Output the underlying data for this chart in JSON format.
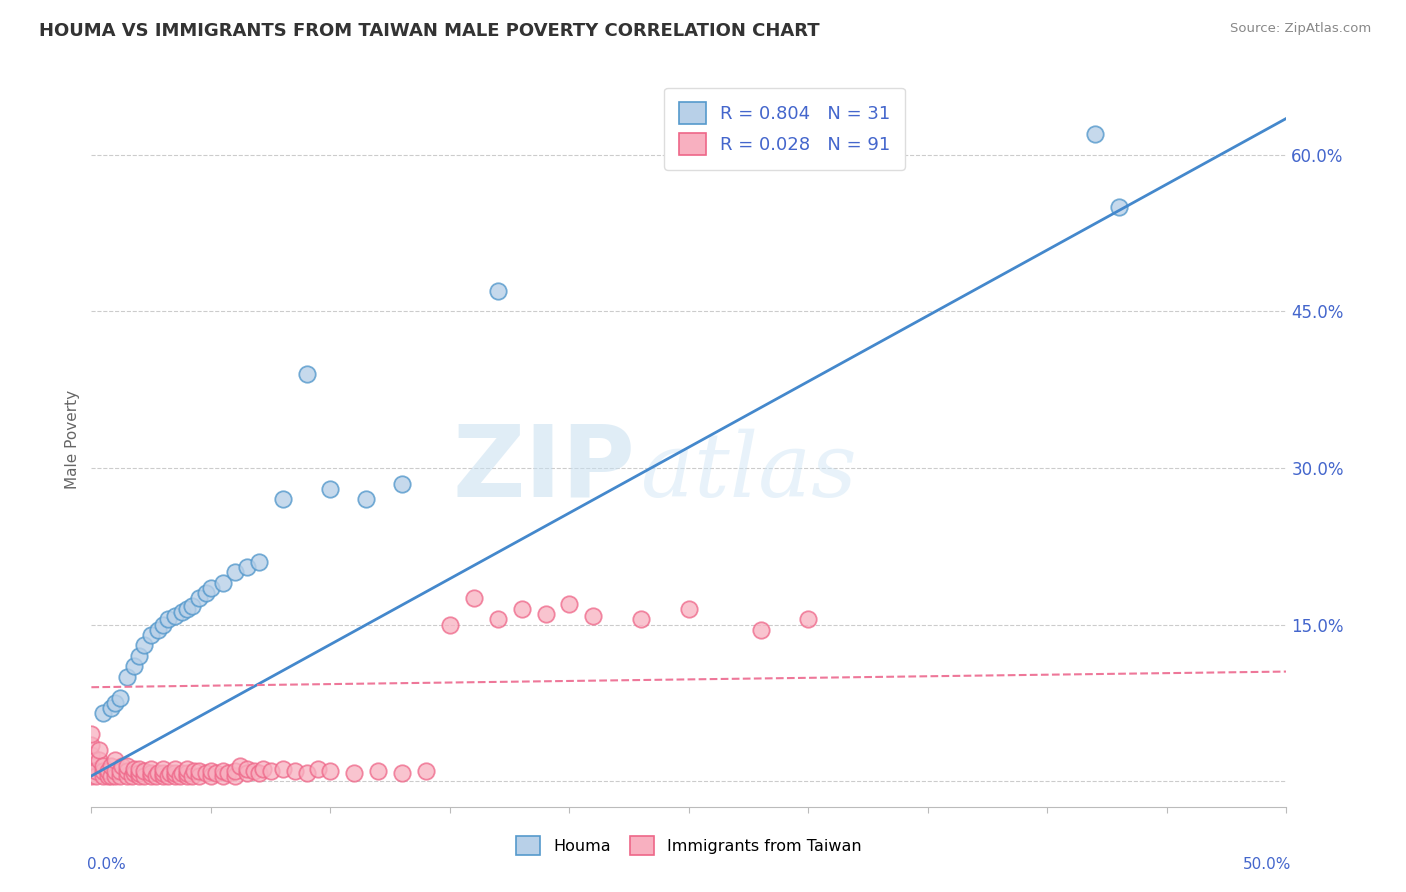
{
  "title": "HOUMA VS IMMIGRANTS FROM TAIWAN MALE POVERTY CORRELATION CHART",
  "source": "Source: ZipAtlas.com",
  "ylabel": "Male Poverty",
  "color_blue_fill": "#b8d0e8",
  "color_blue_edge": "#5599cc",
  "color_pink_fill": "#f8b0c0",
  "color_pink_edge": "#ee6688",
  "color_blue_line": "#4488cc",
  "color_pink_line": "#ee7799",
  "color_title": "#333333",
  "color_axis_blue": "#4466cc",
  "color_source": "#888888",
  "R_houma": 0.804,
  "N_houma": 31,
  "R_taiwan": 0.028,
  "N_taiwan": 91,
  "legend_label1": "Houma",
  "legend_label2": "Immigrants from Taiwan",
  "xlim": [
    0.0,
    0.5
  ],
  "ylim": [
    -0.025,
    0.68
  ],
  "right_yticks": [
    0.0,
    0.15,
    0.3,
    0.45,
    0.6
  ],
  "right_yticklabels": [
    "",
    "15.0%",
    "30.0%",
    "45.0%",
    "60.0%"
  ],
  "houma_x": [
    0.005,
    0.008,
    0.01,
    0.012,
    0.015,
    0.018,
    0.02,
    0.022,
    0.025,
    0.028,
    0.03,
    0.032,
    0.035,
    0.038,
    0.04,
    0.042,
    0.045,
    0.048,
    0.05,
    0.055,
    0.06,
    0.065,
    0.07,
    0.08,
    0.09,
    0.1,
    0.115,
    0.13,
    0.17,
    0.42,
    0.43
  ],
  "houma_y": [
    0.065,
    0.07,
    0.075,
    0.08,
    0.1,
    0.11,
    0.12,
    0.13,
    0.14,
    0.145,
    0.15,
    0.155,
    0.158,
    0.162,
    0.165,
    0.168,
    0.175,
    0.18,
    0.185,
    0.19,
    0.2,
    0.205,
    0.21,
    0.27,
    0.39,
    0.28,
    0.27,
    0.285,
    0.47,
    0.62,
    0.55
  ],
  "taiwan_x": [
    0.0,
    0.0,
    0.0,
    0.0,
    0.0,
    0.002,
    0.002,
    0.003,
    0.003,
    0.005,
    0.005,
    0.005,
    0.007,
    0.007,
    0.008,
    0.008,
    0.01,
    0.01,
    0.01,
    0.012,
    0.012,
    0.013,
    0.015,
    0.015,
    0.015,
    0.017,
    0.018,
    0.018,
    0.02,
    0.02,
    0.02,
    0.022,
    0.022,
    0.025,
    0.025,
    0.025,
    0.027,
    0.028,
    0.03,
    0.03,
    0.03,
    0.032,
    0.033,
    0.035,
    0.035,
    0.035,
    0.037,
    0.038,
    0.04,
    0.04,
    0.04,
    0.042,
    0.043,
    0.045,
    0.045,
    0.048,
    0.05,
    0.05,
    0.052,
    0.055,
    0.055,
    0.057,
    0.06,
    0.06,
    0.062,
    0.065,
    0.065,
    0.068,
    0.07,
    0.072,
    0.075,
    0.08,
    0.085,
    0.09,
    0.095,
    0.1,
    0.11,
    0.12,
    0.13,
    0.14,
    0.15,
    0.16,
    0.17,
    0.18,
    0.19,
    0.2,
    0.21,
    0.23,
    0.25,
    0.28,
    0.3
  ],
  "taiwan_y": [
    0.005,
    0.015,
    0.025,
    0.035,
    0.045,
    0.005,
    0.01,
    0.02,
    0.03,
    0.005,
    0.01,
    0.015,
    0.005,
    0.01,
    0.005,
    0.015,
    0.005,
    0.01,
    0.02,
    0.005,
    0.01,
    0.015,
    0.005,
    0.01,
    0.015,
    0.005,
    0.008,
    0.012,
    0.005,
    0.008,
    0.012,
    0.005,
    0.01,
    0.005,
    0.008,
    0.012,
    0.005,
    0.008,
    0.005,
    0.008,
    0.012,
    0.005,
    0.008,
    0.005,
    0.008,
    0.012,
    0.005,
    0.008,
    0.005,
    0.008,
    0.012,
    0.005,
    0.01,
    0.005,
    0.01,
    0.008,
    0.005,
    0.01,
    0.008,
    0.005,
    0.01,
    0.008,
    0.005,
    0.01,
    0.015,
    0.008,
    0.012,
    0.01,
    0.008,
    0.012,
    0.01,
    0.012,
    0.01,
    0.008,
    0.012,
    0.01,
    0.008,
    0.01,
    0.008,
    0.01,
    0.15,
    0.175,
    0.155,
    0.165,
    0.16,
    0.17,
    0.158,
    0.155,
    0.165,
    0.145,
    0.155
  ]
}
